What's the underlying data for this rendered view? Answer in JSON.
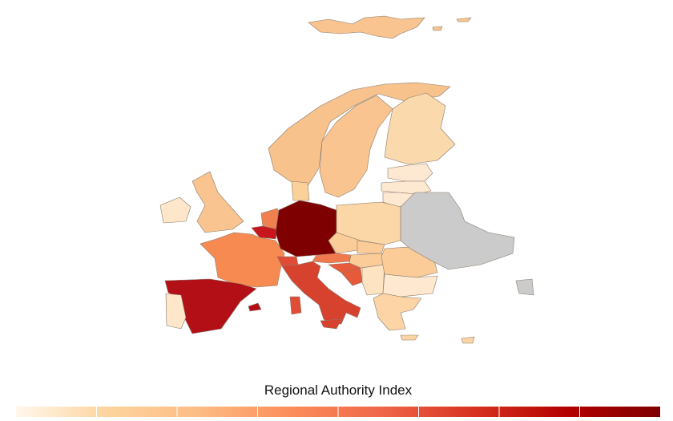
{
  "legend": {
    "title": "Regional Authority Index",
    "colors": [
      "#fff7ec",
      "#fdd49e",
      "#fdbb84",
      "#fc8d59",
      "#ef6548",
      "#d7301f",
      "#b30000",
      "#7f0000"
    ],
    "segments": 8
  }
}
